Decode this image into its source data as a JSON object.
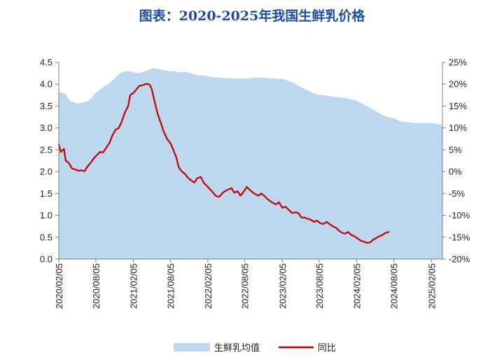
{
  "chart_data": {
    "type": "line",
    "title": "图表：2020-2025年我国生鲜乳价格",
    "x_tick_labels": [
      "2020/02/05",
      "2020/08/05",
      "2021/02/05",
      "2021/08/05",
      "2022/02/05",
      "2022/08/05",
      "2023/02/05",
      "2023/08/05",
      "2024/02/05",
      "2024/08/05",
      "2025/02/05"
    ],
    "x_range": [
      "2020/02/05",
      "2025/03/31"
    ],
    "y_left": {
      "min": 0,
      "max": 4.5,
      "ticks": [
        "0.0",
        "0.5",
        "1.0",
        "1.5",
        "2.0",
        "2.5",
        "3.0",
        "3.5",
        "4.0",
        "4.5"
      ]
    },
    "y_right": {
      "min": -20,
      "max": 25,
      "ticks": [
        "-20%",
        "-15%",
        "-10%",
        "-5%",
        "0%",
        "5%",
        "10%",
        "15%",
        "20%",
        "25%"
      ]
    },
    "grid": false,
    "legend_position": "bottom-center",
    "series": [
      {
        "name": "生鲜乳均值",
        "type": "area",
        "axis": "left",
        "color": "#bdd7ee",
        "points": [
          [
            "2020/02/05",
            3.83
          ],
          [
            "2020/02/20",
            3.8
          ],
          [
            "2020/03/10",
            3.78
          ],
          [
            "2020/03/25",
            3.65
          ],
          [
            "2020/04/10",
            3.6
          ],
          [
            "2020/05/01",
            3.56
          ],
          [
            "2020/05/20",
            3.57
          ],
          [
            "2020/06/10",
            3.58
          ],
          [
            "2020/07/01",
            3.62
          ],
          [
            "2020/07/20",
            3.72
          ],
          [
            "2020/08/05",
            3.8
          ],
          [
            "2020/08/25",
            3.88
          ],
          [
            "2020/09/15",
            3.95
          ],
          [
            "2020/10/05",
            4.0
          ],
          [
            "2020/10/25",
            4.08
          ],
          [
            "2020/11/15",
            4.18
          ],
          [
            "2020/12/05",
            4.26
          ],
          [
            "2020/12/25",
            4.29
          ],
          [
            "2021/01/15",
            4.3
          ],
          [
            "2021/02/05",
            4.28
          ],
          [
            "2021/02/25",
            4.25
          ],
          [
            "2021/03/15",
            4.27
          ],
          [
            "2021/04/05",
            4.3
          ],
          [
            "2021/04/25",
            4.33
          ],
          [
            "2021/05/15",
            4.37
          ],
          [
            "2021/06/05",
            4.35
          ],
          [
            "2021/06/25",
            4.33
          ],
          [
            "2021/07/15",
            4.31
          ],
          [
            "2021/08/05",
            4.3
          ],
          [
            "2021/08/25",
            4.3
          ],
          [
            "2021/09/15",
            4.27
          ],
          [
            "2021/10/05",
            4.28
          ],
          [
            "2021/10/25",
            4.28
          ],
          [
            "2021/11/15",
            4.25
          ],
          [
            "2021/12/05",
            4.22
          ],
          [
            "2021/12/25",
            4.2
          ],
          [
            "2022/01/15",
            4.2
          ],
          [
            "2022/02/05",
            4.18
          ],
          [
            "2022/03/01",
            4.16
          ],
          [
            "2022/04/01",
            4.15
          ],
          [
            "2022/05/01",
            4.14
          ],
          [
            "2022/06/01",
            4.14
          ],
          [
            "2022/07/01",
            4.13
          ],
          [
            "2022/08/01",
            4.13
          ],
          [
            "2022/09/01",
            4.14
          ],
          [
            "2022/10/01",
            4.15
          ],
          [
            "2022/11/01",
            4.15
          ],
          [
            "2022/12/01",
            4.14
          ],
          [
            "2023/01/01",
            4.13
          ],
          [
            "2023/02/05",
            4.12
          ],
          [
            "2023/03/05",
            4.08
          ],
          [
            "2023/04/05",
            4.02
          ],
          [
            "2023/05/05",
            3.94
          ],
          [
            "2023/06/05",
            3.87
          ],
          [
            "2023/07/05",
            3.8
          ],
          [
            "2023/08/05",
            3.76
          ],
          [
            "2023/09/05",
            3.74
          ],
          [
            "2023/10/05",
            3.72
          ],
          [
            "2023/11/05",
            3.7
          ],
          [
            "2023/12/05",
            3.69
          ],
          [
            "2024/01/05",
            3.66
          ],
          [
            "2024/02/05",
            3.62
          ],
          [
            "2024/03/05",
            3.55
          ],
          [
            "2024/04/05",
            3.47
          ],
          [
            "2024/05/05",
            3.39
          ],
          [
            "2024/06/05",
            3.31
          ],
          [
            "2024/07/05",
            3.25
          ],
          [
            "2024/08/05",
            3.22
          ],
          [
            "2024/09/05",
            3.15
          ],
          [
            "2024/10/05",
            3.13
          ],
          [
            "2024/11/05",
            3.12
          ],
          [
            "2024/12/05",
            3.11
          ],
          [
            "2025/01/05",
            3.11
          ],
          [
            "2025/02/05",
            3.11
          ],
          [
            "2025/03/05",
            3.09
          ],
          [
            "2025/03/31",
            3.07
          ]
        ]
      },
      {
        "name": "同比",
        "type": "line",
        "axis": "right",
        "color": "#c00000",
        "points": [
          [
            "2020/02/05",
            6.2
          ],
          [
            "2020/02/15",
            4.5
          ],
          [
            "2020/03/01",
            5.2
          ],
          [
            "2020/03/10",
            2.5
          ],
          [
            "2020/03/25",
            2.0
          ],
          [
            "2020/04/10",
            0.7
          ],
          [
            "2020/04/25",
            0.5
          ],
          [
            "2020/05/10",
            0.2
          ],
          [
            "2020/05/25",
            0.3
          ],
          [
            "2020/06/10",
            0.1
          ],
          [
            "2020/06/25",
            1.2
          ],
          [
            "2020/07/10",
            2.0
          ],
          [
            "2020/07/25",
            3.0
          ],
          [
            "2020/08/10",
            3.8
          ],
          [
            "2020/08/25",
            4.5
          ],
          [
            "2020/09/10",
            4.4
          ],
          [
            "2020/09/25",
            5.5
          ],
          [
            "2020/10/10",
            6.5
          ],
          [
            "2020/10/25",
            8.3
          ],
          [
            "2020/11/10",
            9.6
          ],
          [
            "2020/11/25",
            10.0
          ],
          [
            "2020/12/10",
            11.5
          ],
          [
            "2020/12/25",
            13.5
          ],
          [
            "2021/01/10",
            15.0
          ],
          [
            "2021/01/20",
            17.5
          ],
          [
            "2021/02/05",
            18.0
          ],
          [
            "2021/02/20",
            18.8
          ],
          [
            "2021/03/05",
            19.6
          ],
          [
            "2021/03/25",
            19.8
          ],
          [
            "2021/04/10",
            20.1
          ],
          [
            "2021/04/25",
            19.9
          ],
          [
            "2021/05/05",
            19.0
          ],
          [
            "2021/05/20",
            16.0
          ],
          [
            "2021/06/05",
            13.0
          ],
          [
            "2021/06/20",
            11.0
          ],
          [
            "2021/07/05",
            9.0
          ],
          [
            "2021/07/20",
            7.5
          ],
          [
            "2021/08/05",
            6.5
          ],
          [
            "2021/08/20",
            5.0
          ],
          [
            "2021/09/05",
            3.0
          ],
          [
            "2021/09/15",
            1.0
          ],
          [
            "2021/10/01",
            0.0
          ],
          [
            "2021/10/15",
            -0.5
          ],
          [
            "2021/11/01",
            -1.5
          ],
          [
            "2021/11/15",
            -2.0
          ],
          [
            "2021/12/01",
            -2.5
          ],
          [
            "2021/12/15",
            -1.5
          ],
          [
            "2022/01/01",
            -1.2
          ],
          [
            "2022/01/15",
            -2.5
          ],
          [
            "2022/02/05",
            -3.5
          ],
          [
            "2022/02/25",
            -4.5
          ],
          [
            "2022/03/15",
            -5.5
          ],
          [
            "2022/04/01",
            -5.8
          ],
          [
            "2022/04/20",
            -4.8
          ],
          [
            "2022/05/10",
            -4.2
          ],
          [
            "2022/06/01",
            -3.8
          ],
          [
            "2022/06/15",
            -4.8
          ],
          [
            "2022/07/01",
            -4.5
          ],
          [
            "2022/07/15",
            -5.5
          ],
          [
            "2022/08/01",
            -4.5
          ],
          [
            "2022/08/15",
            -3.5
          ],
          [
            "2022/09/01",
            -4.3
          ],
          [
            "2022/09/20",
            -5.0
          ],
          [
            "2022/10/10",
            -5.5
          ],
          [
            "2022/10/25",
            -5.0
          ],
          [
            "2022/11/10",
            -5.6
          ],
          [
            "2022/11/25",
            -6.3
          ],
          [
            "2022/12/15",
            -7.0
          ],
          [
            "2023/01/05",
            -7.5
          ],
          [
            "2023/01/20",
            -7.0
          ],
          [
            "2023/02/05",
            -8.3
          ],
          [
            "2023/02/20",
            -8.0
          ],
          [
            "2023/03/10",
            -8.8
          ],
          [
            "2023/03/25",
            -9.5
          ],
          [
            "2023/04/10",
            -9.3
          ],
          [
            "2023/04/25",
            -9.5
          ],
          [
            "2023/05/10",
            -10.5
          ],
          [
            "2023/05/25",
            -10.5
          ],
          [
            "2023/06/10",
            -10.8
          ],
          [
            "2023/06/25",
            -11.0
          ],
          [
            "2023/07/10",
            -11.5
          ],
          [
            "2023/07/25",
            -11.2
          ],
          [
            "2023/08/10",
            -11.8
          ],
          [
            "2023/08/25",
            -12.0
          ],
          [
            "2023/09/10",
            -11.5
          ],
          [
            "2023/09/25",
            -12.0
          ],
          [
            "2023/10/10",
            -12.5
          ],
          [
            "2023/10/25",
            -12.8
          ],
          [
            "2023/11/10",
            -13.5
          ],
          [
            "2023/11/25",
            -14.0
          ],
          [
            "2023/12/10",
            -14.2
          ],
          [
            "2023/12/25",
            -13.8
          ],
          [
            "2024/01/10",
            -14.5
          ],
          [
            "2024/01/25",
            -14.8
          ],
          [
            "2024/02/10",
            -15.3
          ],
          [
            "2024/02/25",
            -15.8
          ],
          [
            "2024/03/10",
            -16.0
          ],
          [
            "2024/03/25",
            -16.3
          ],
          [
            "2024/04/10",
            -16.2
          ],
          [
            "2024/04/25",
            -15.6
          ],
          [
            "2024/05/10",
            -15.2
          ],
          [
            "2024/05/25",
            -14.8
          ],
          [
            "2024/06/10",
            -14.5
          ],
          [
            "2024/06/25",
            -14.0
          ],
          [
            "2024/07/10",
            -13.8
          ]
        ]
      }
    ]
  }
}
